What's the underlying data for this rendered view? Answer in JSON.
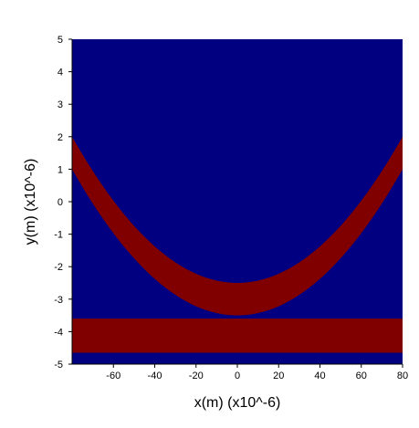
{
  "chart_data": {
    "type": "heatmap",
    "title": "",
    "xlabel": "x(m) (x10^-6)",
    "ylabel": "y(m) (x10^-6)",
    "xlim": [
      -80,
      80
    ],
    "ylim": [
      -5,
      5
    ],
    "x_ticks": [
      -60,
      -40,
      -20,
      0,
      20,
      40,
      60,
      80
    ],
    "y_ticks": [
      -5,
      -4,
      -3,
      -2,
      -1,
      0,
      1,
      2,
      3,
      4,
      5
    ],
    "colors": {
      "background": "#000080",
      "region": "#800000"
    },
    "regions": [
      {
        "shape": "parabolic-band",
        "lower_curve": {
          "vertex": [
            0,
            -3.5
          ],
          "y_at_x_edge": 1.0,
          "x_edge": 80
        },
        "upper_curve": {
          "vertex": [
            0,
            -2.5
          ],
          "y_at_x_edge": 2.0,
          "x_edge": 80
        }
      },
      {
        "shape": "horizontal-band",
        "y_range": [
          -4.65,
          -3.6
        ]
      }
    ]
  }
}
